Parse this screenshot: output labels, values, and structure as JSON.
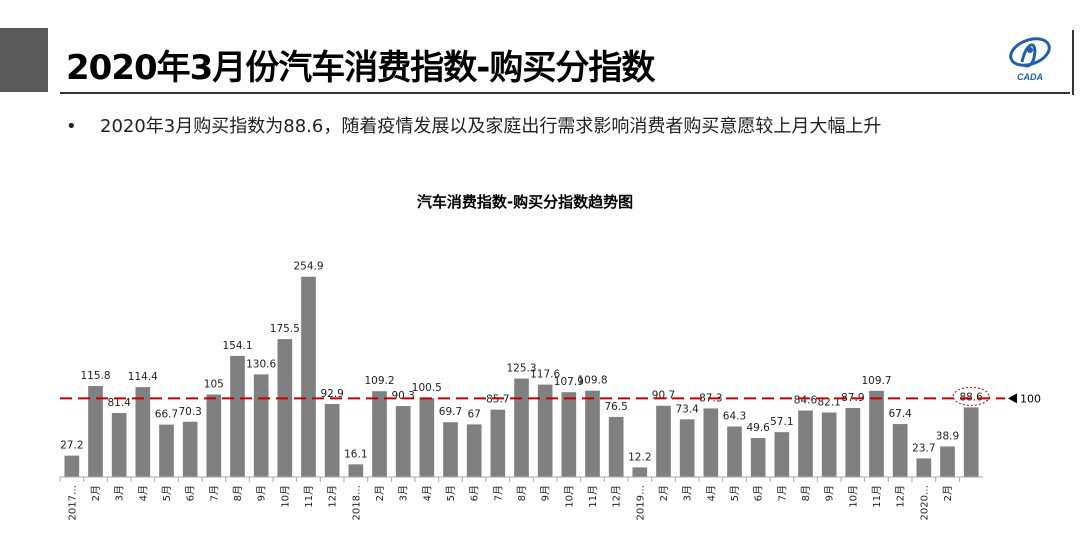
{
  "slide": {
    "title": "2020年3月份汽车消费指数-购买分指数",
    "bullet_symbol": "•",
    "bullet_text": "2020年3月购买指数为88.6，随着疫情发展以及家庭出行需求影响消费者购买意愿较上月大幅上升",
    "logo_text": "CADA"
  },
  "colors": {
    "bar": "#808080",
    "reference": "#c00000",
    "accent": "#595959"
  },
  "chart_data": {
    "type": "bar",
    "title": "汽车消费指数-购买分指数趋势图",
    "categories": [
      "2017…",
      "2月",
      "3月",
      "4月",
      "5月",
      "6月",
      "7月",
      "8月",
      "9月",
      "10月",
      "11月",
      "12月",
      "2018…",
      "2月",
      "3月",
      "4月",
      "5月",
      "6月",
      "7月",
      "8月",
      "9月",
      "10月",
      "11月",
      "12月",
      "2019…",
      "2月",
      "3月",
      "4月",
      "5月",
      "6月",
      "7月",
      "8月",
      "9月",
      "10月",
      "11月",
      "12月",
      "2020…",
      "2月",
      ""
    ],
    "values": [
      27.2,
      115.8,
      81.4,
      114.4,
      66.7,
      70.3,
      105,
      154.1,
      130.6,
      175.5,
      254.9,
      92.9,
      16.1,
      109.2,
      90.3,
      100.5,
      69.7,
      67,
      85.7,
      125.3,
      117.6,
      107.9,
      109.8,
      76.5,
      12.2,
      90.7,
      73.4,
      87.3,
      64.3,
      49.6,
      57.1,
      84.6,
      82.1,
      87.9,
      109.7,
      67.4,
      23.7,
      38.9,
      88.6
    ],
    "labels": [
      "27.2",
      "115.8",
      "81.4",
      "114.4",
      "66.7",
      "70.3",
      "105",
      "154.1",
      "130.6",
      "175.5",
      "254.9",
      "92.9",
      "16.1",
      "109.2",
      "90.3",
      "100.5",
      "69.7",
      "67",
      "85.7",
      "125.3",
      "117.6",
      "107.9",
      "109.8",
      "76.5",
      "12.2",
      "90.7",
      "73.4",
      "87.3",
      "64.3",
      "49.6",
      "57.1",
      "84.6",
      "82.1",
      "87.9",
      "109.7",
      "67.4",
      "23.7",
      "38.9",
      "88.6"
    ],
    "reference_line": {
      "value": 100,
      "label": "100"
    },
    "highlight_index": 38,
    "ylim": [
      0,
      280
    ],
    "xlabel": "",
    "ylabel": "",
    "grid": false,
    "legend": "none"
  }
}
